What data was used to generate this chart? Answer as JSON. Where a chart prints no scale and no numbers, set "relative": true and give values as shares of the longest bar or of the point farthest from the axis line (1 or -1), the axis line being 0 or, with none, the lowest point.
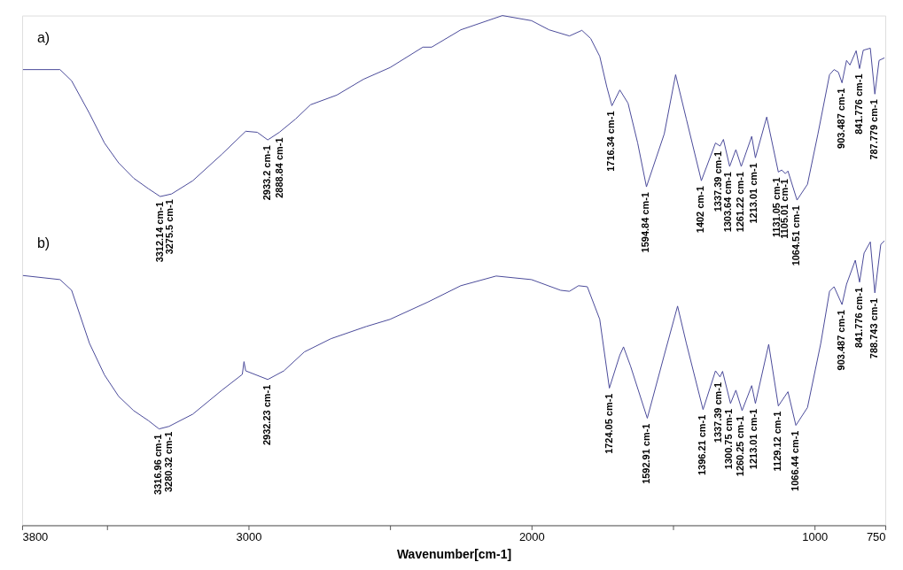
{
  "chart_data": {
    "type": "line",
    "relative": true,
    "xlabel": "Wavenumber[cm-1]",
    "xlim": [
      3800,
      750
    ],
    "xticks": [
      3800,
      {
        "value": 3500,
        "label": null
      },
      3000,
      {
        "value": 2500,
        "label": null
      },
      2000,
      {
        "value": 1500,
        "label": null
      },
      1000,
      750
    ],
    "grid": false,
    "legend": false,
    "marker": "none",
    "line_style": "solid",
    "series": [
      {
        "name": "a)",
        "color": "#4a4a9a",
        "x": [
          3797,
          3666,
          3625,
          3562,
          3509,
          3459,
          3406,
          3353,
          3312,
          3272,
          3197,
          3094,
          3010,
          2969,
          2932,
          2891,
          2834,
          2781,
          2688,
          2594,
          2500,
          2384,
          2353,
          2250,
          2103,
          2000,
          1938,
          1866,
          1822,
          1791,
          1759,
          1734,
          1716,
          1688,
          1659,
          1625,
          1594,
          1531,
          1491,
          1453,
          1400,
          1350,
          1334,
          1322,
          1300,
          1278,
          1259,
          1222,
          1209,
          1169,
          1128,
          1116,
          1103,
          1094,
          1062,
          1025,
          988,
          947,
          931,
          916,
          903,
          887,
          875,
          853,
          841,
          828,
          803,
          787,
          772,
          753
        ],
        "values": [
          0.894,
          0.894,
          0.872,
          0.808,
          0.75,
          0.711,
          0.681,
          0.66,
          0.645,
          0.65,
          0.676,
          0.728,
          0.773,
          0.771,
          0.756,
          0.771,
          0.797,
          0.825,
          0.844,
          0.875,
          0.898,
          0.938,
          0.938,
          0.972,
          1.0,
          0.99,
          0.972,
          0.96,
          0.971,
          0.955,
          0.92,
          0.86,
          0.823,
          0.854,
          0.828,
          0.75,
          0.664,
          0.768,
          0.884,
          0.797,
          0.676,
          0.75,
          0.744,
          0.757,
          0.704,
          0.737,
          0.704,
          0.763,
          0.721,
          0.801,
          0.693,
          0.697,
          0.69,
          0.695,
          0.638,
          0.669,
          0.768,
          0.884,
          0.894,
          0.889,
          0.868,
          0.912,
          0.903,
          0.931,
          0.896,
          0.932,
          0.936,
          0.846,
          0.912,
          0.917
        ]
      },
      {
        "name": "b)",
        "color": "#4a4a9a",
        "x": [
          3797,
          3666,
          3625,
          3562,
          3509,
          3459,
          3406,
          3353,
          3316,
          3281,
          3197,
          3094,
          3022,
          3016,
          3010,
          2932,
          2875,
          2803,
          2709,
          2584,
          2500,
          2366,
          2250,
          2125,
          2000,
          1897,
          1866,
          1834,
          1803,
          1759,
          1725,
          1688,
          1675,
          1650,
          1591,
          1531,
          1484,
          1453,
          1394,
          1350,
          1334,
          1325,
          1297,
          1278,
          1256,
          1222,
          1209,
          1162,
          1128,
          1094,
          1066,
          1025,
          978,
          947,
          931,
          903,
          887,
          856,
          841,
          825,
          803,
          787,
          766,
          753
        ],
        "values": [
          0.49,
          0.482,
          0.461,
          0.357,
          0.295,
          0.253,
          0.225,
          0.205,
          0.189,
          0.194,
          0.218,
          0.265,
          0.296,
          0.321,
          0.303,
          0.286,
          0.303,
          0.34,
          0.366,
          0.39,
          0.404,
          0.438,
          0.47,
          0.489,
          0.482,
          0.461,
          0.459,
          0.47,
          0.468,
          0.404,
          0.269,
          0.334,
          0.35,
          0.312,
          0.21,
          0.334,
          0.43,
          0.357,
          0.227,
          0.303,
          0.291,
          0.302,
          0.239,
          0.265,
          0.225,
          0.274,
          0.239,
          0.355,
          0.234,
          0.262,
          0.196,
          0.231,
          0.357,
          0.459,
          0.468,
          0.433,
          0.473,
          0.52,
          0.477,
          0.534,
          0.556,
          0.456,
          0.551,
          0.558
        ]
      }
    ],
    "annotations": [
      {
        "text": "3312.14 cm-1",
        "x": 3312.14,
        "y": 0.645
      },
      {
        "text": "3275.5 cm-1",
        "x": 3275.5,
        "y": 0.65
      },
      {
        "text": "2933.2 cm-1",
        "x": 2933.2,
        "y": 0.756
      },
      {
        "text": "2888.84 cm-1",
        "x": 2888.84,
        "y": 0.771
      },
      {
        "text": "1716.34 cm-1",
        "x": 1716.34,
        "y": 0.823
      },
      {
        "text": "1594.84 cm-1",
        "x": 1594.84,
        "y": 0.664
      },
      {
        "text": "1402 cm-1",
        "x": 1402,
        "y": 0.676
      },
      {
        "text": "1337.39 cm-1",
        "x": 1337.39,
        "y": 0.744
      },
      {
        "text": "1303.64 cm-1",
        "x": 1303.64,
        "y": 0.704
      },
      {
        "text": "1261.22 cm-1",
        "x": 1261.22,
        "y": 0.704
      },
      {
        "text": "1213.01 cm-1",
        "x": 1213.01,
        "y": 0.721
      },
      {
        "text": "1131.05 cm-1",
        "x": 1131.05,
        "y": 0.693
      },
      {
        "text": "1105.01 cm-1",
        "x": 1105.01,
        "y": 0.69
      },
      {
        "text": "1064.51 cm-1",
        "x": 1064.51,
        "y": 0.638
      },
      {
        "text": "903.487 cm-1",
        "x": 903.487,
        "y": 0.868
      },
      {
        "text": "841.776 cm-1",
        "x": 841.776,
        "y": 0.896
      },
      {
        "text": "787.779 cm-1",
        "x": 787.779,
        "y": 0.846
      },
      {
        "text": "3316.96 cm-1",
        "x": 3316.96,
        "y": 0.189
      },
      {
        "text": "3280.32 cm-1",
        "x": 3280.32,
        "y": 0.194
      },
      {
        "text": "2932.23 cm-1",
        "x": 2932.23,
        "y": 0.286
      },
      {
        "text": "1724.05 cm-1",
        "x": 1724.05,
        "y": 0.269
      },
      {
        "text": "1592.91 cm-1",
        "x": 1592.91,
        "y": 0.21
      },
      {
        "text": "1396.21 cm-1",
        "x": 1396.21,
        "y": 0.227
      },
      {
        "text": "1337.39 cm-1",
        "x": 1337.39,
        "y": 0.291
      },
      {
        "text": "1300.75 cm-1",
        "x": 1300.75,
        "y": 0.239
      },
      {
        "text": "1260.25 cm-1",
        "x": 1260.25,
        "y": 0.225
      },
      {
        "text": "1213.01 cm-1",
        "x": 1213.01,
        "y": 0.239
      },
      {
        "text": "1129.12 cm-1",
        "x": 1129.12,
        "y": 0.234
      },
      {
        "text": "1066.44 cm-1",
        "x": 1066.44,
        "y": 0.196
      },
      {
        "text": "903.487 cm-1",
        "x": 903.487,
        "y": 0.433
      },
      {
        "text": "841.776 cm-1",
        "x": 841.776,
        "y": 0.477
      },
      {
        "text": "788.743 cm-1",
        "x": 788.743,
        "y": 0.456
      }
    ]
  }
}
